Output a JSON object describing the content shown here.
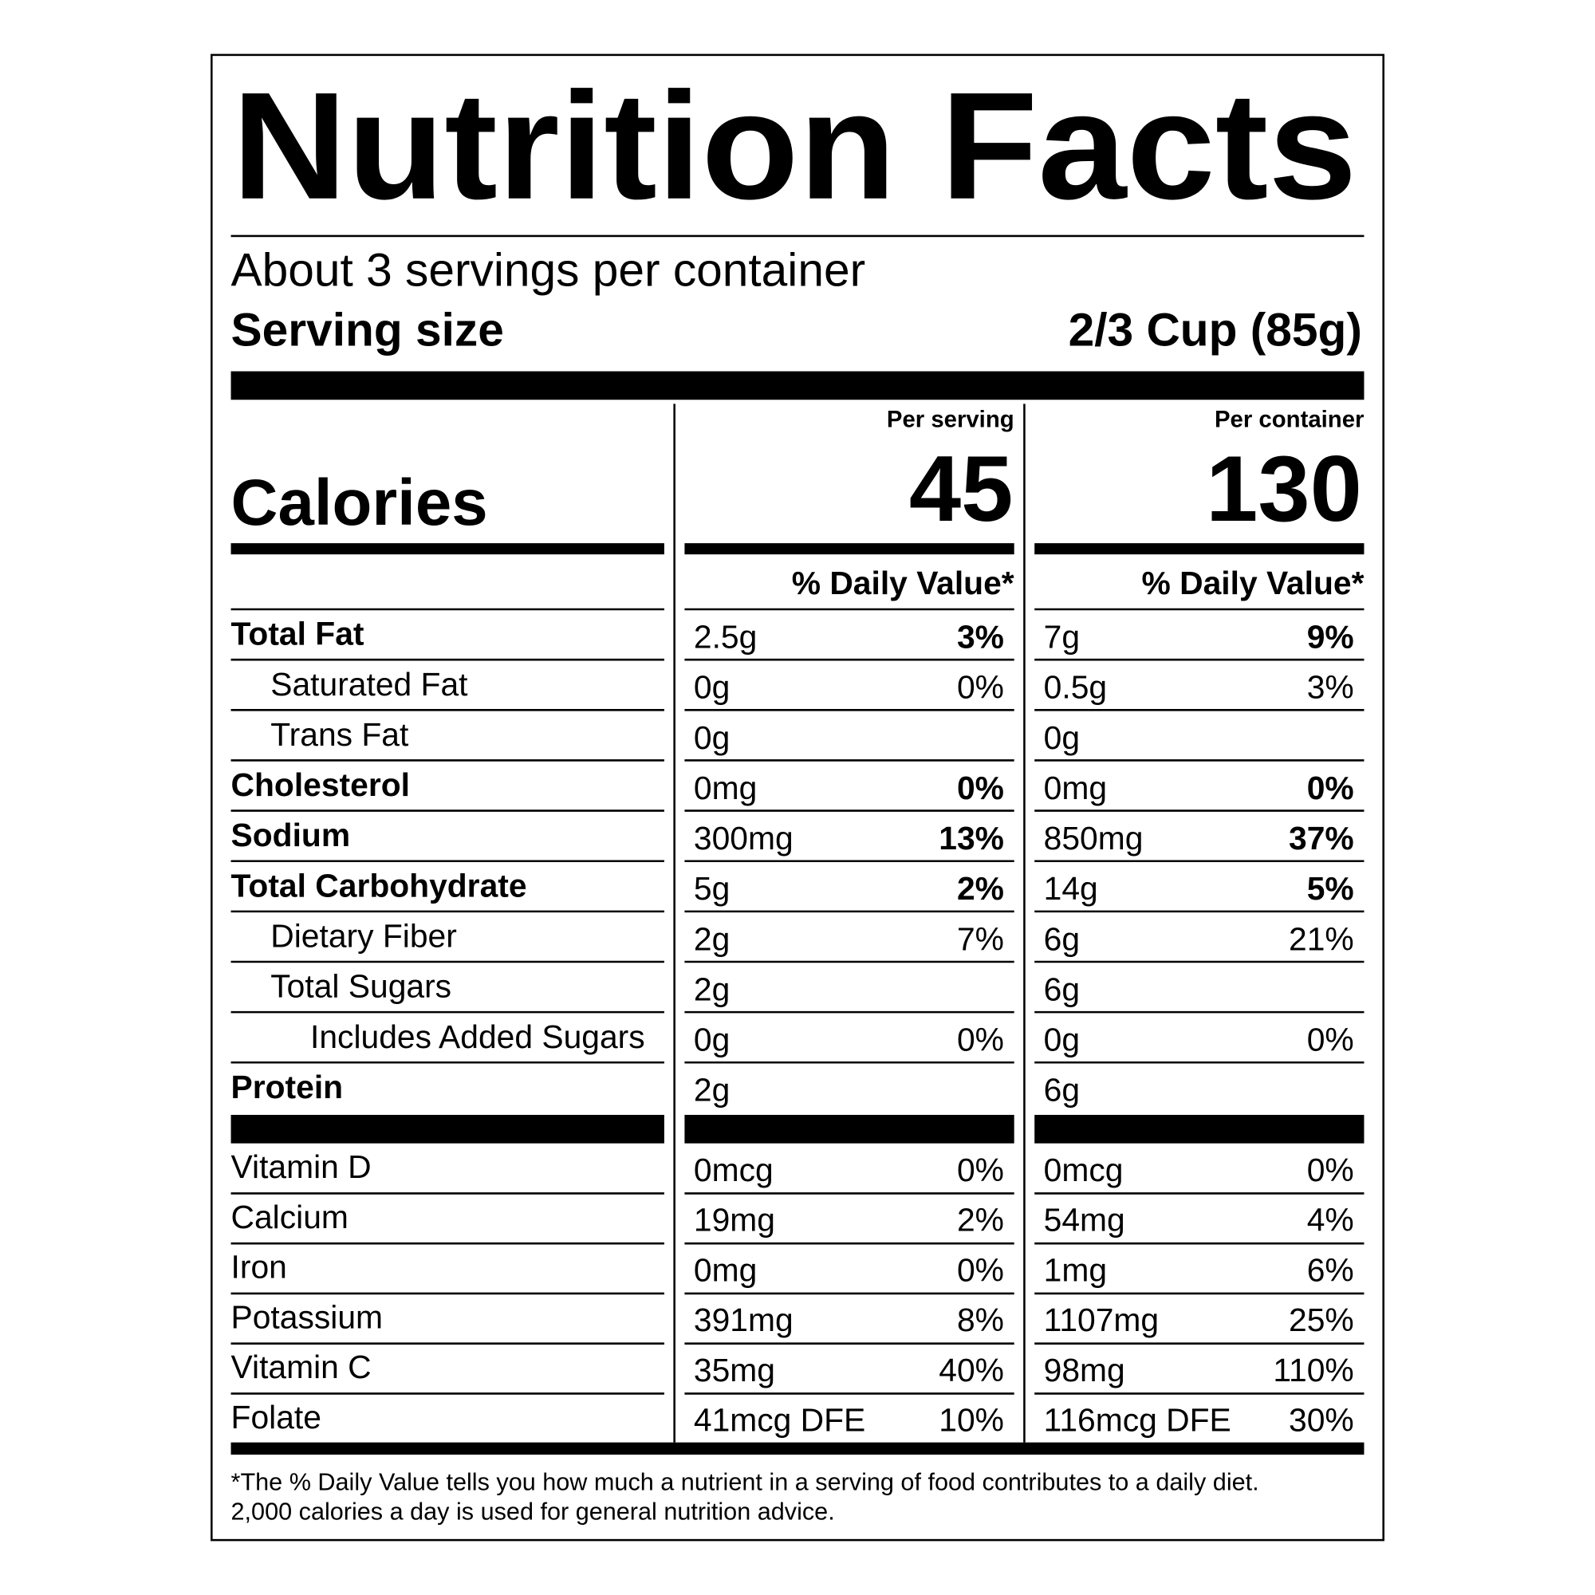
{
  "header": {
    "title": "Nutrition Facts",
    "servings": "About 3 servings per container",
    "serving_size_label": "Serving size",
    "serving_size": "2/3 Cup (85g)"
  },
  "calories": {
    "label": "Calories",
    "per_serving_heading": "Per serving",
    "per_container_heading": "Per container",
    "per_serving": 45,
    "per_container": 130
  },
  "daily_value_heading": "% Daily Value*",
  "nutrients": [
    {
      "name": "Total Fat",
      "bold": true,
      "indent": 0,
      "per_serving": {
        "amount": "2.5g",
        "dv": "3%"
      },
      "per_container": {
        "amount": "7g",
        "dv": "9%"
      }
    },
    {
      "name": "Saturated Fat",
      "bold": false,
      "indent": 1,
      "per_serving": {
        "amount": "0g",
        "dv": "0%"
      },
      "per_container": {
        "amount": "0.5g",
        "dv": "3%"
      }
    },
    {
      "name": "Trans Fat",
      "bold": false,
      "indent": 1,
      "per_serving": {
        "amount": "0g"
      },
      "per_container": {
        "amount": "0g"
      }
    },
    {
      "name": "Cholesterol",
      "bold": true,
      "indent": 0,
      "per_serving": {
        "amount": "0mg",
        "dv": "0%"
      },
      "per_container": {
        "amount": "0mg",
        "dv": "0%"
      }
    },
    {
      "name": "Sodium",
      "bold": true,
      "indent": 0,
      "per_serving": {
        "amount": "300mg",
        "dv": "13%"
      },
      "per_container": {
        "amount": "850mg",
        "dv": "37%"
      }
    },
    {
      "name": "Total Carbohydrate",
      "bold": true,
      "indent": 0,
      "per_serving": {
        "amount": "5g",
        "dv": "2%"
      },
      "per_container": {
        "amount": "14g",
        "dv": "5%"
      }
    },
    {
      "name": "Dietary Fiber",
      "bold": false,
      "indent": 1,
      "per_serving": {
        "amount": "2g",
        "dv": "7%"
      },
      "per_container": {
        "amount": "6g",
        "dv": "21%"
      }
    },
    {
      "name": "Total Sugars",
      "bold": false,
      "indent": 1,
      "per_serving": {
        "amount": "2g"
      },
      "per_container": {
        "amount": "6g"
      }
    },
    {
      "name": "Includes Added Sugars",
      "bold": false,
      "indent": 2,
      "per_serving": {
        "amount": "0g",
        "dv": "0%"
      },
      "per_container": {
        "amount": "0g",
        "dv": "0%"
      }
    },
    {
      "name": "Protein",
      "bold": true,
      "indent": 0,
      "per_serving": {
        "amount": "2g"
      },
      "per_container": {
        "amount": "6g"
      }
    }
  ],
  "vitamins": [
    {
      "name": "Vitamin D",
      "per_serving": {
        "amount": "0mcg",
        "dv": "0%"
      },
      "per_container": {
        "amount": "0mcg",
        "dv": "0%"
      }
    },
    {
      "name": "Calcium",
      "per_serving": {
        "amount": "19mg",
        "dv": "2%"
      },
      "per_container": {
        "amount": "54mg",
        "dv": "4%"
      }
    },
    {
      "name": "Iron",
      "per_serving": {
        "amount": "0mg",
        "dv": "0%"
      },
      "per_container": {
        "amount": "1mg",
        "dv": "6%"
      }
    },
    {
      "name": "Potassium",
      "per_serving": {
        "amount": "391mg",
        "dv": "8%"
      },
      "per_container": {
        "amount": "1107mg",
        "dv": "25%"
      }
    },
    {
      "name": "Vitamin C",
      "per_serving": {
        "amount": "35mg",
        "dv": "40%"
      },
      "per_container": {
        "amount": "98mg",
        "dv": "110%"
      }
    },
    {
      "name": "Folate",
      "per_serving": {
        "amount": "41mcg DFE",
        "dv": "10%"
      },
      "per_container": {
        "amount": "116mcg DFE",
        "dv": "30%"
      }
    }
  ],
  "footnote": [
    "*The % Daily Value tells you how much a nutrient in a serving of food contributes to a daily diet.",
    "2,000 calories a day is used for general nutrition advice."
  ]
}
